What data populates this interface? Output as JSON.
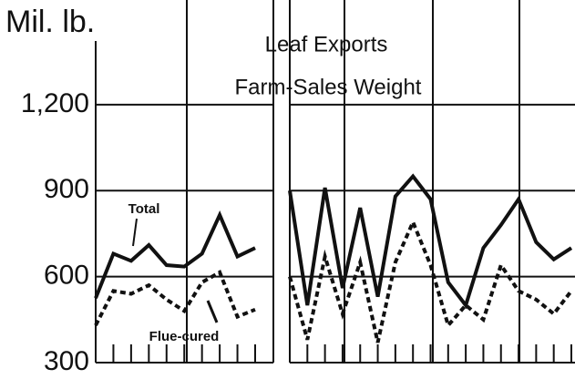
{
  "chart_data": [
    {
      "type": "line",
      "y_label": "Mil. lb.",
      "categories": [
        null,
        null,
        null,
        null,
        null,
        null,
        null,
        null,
        null,
        null
      ],
      "series": [
        {
          "name": "Total",
          "color": "#111111",
          "values": [
            525,
            680,
            655,
            710,
            640,
            635,
            680,
            815,
            670,
            700
          ]
        },
        {
          "name": "Flue-cured",
          "color": "#111111",
          "dashed": true,
          "values": [
            430,
            550,
            540,
            570,
            520,
            480,
            580,
            615,
            460,
            485
          ]
        }
      ],
      "ylim": [
        300,
        1530
      ],
      "yticks": [
        300,
        600,
        900,
        {
          "value": 1200,
          "label": "1,200"
        }
      ],
      "grid": true
    },
    {
      "type": "line",
      "title": "Leaf Exports",
      "subtitle": "Farm-Sales Weight",
      "categories": [
        null,
        null,
        null,
        null,
        null,
        null,
        null,
        null,
        null,
        null,
        null,
        null,
        null,
        null,
        null,
        null,
        null
      ],
      "series": [
        {
          "color": "#111111",
          "values": [
            900,
            500,
            910,
            560,
            840,
            530,
            880,
            950,
            870,
            580,
            500,
            700,
            780,
            870,
            720,
            660,
            700
          ]
        },
        {
          "color": "#111111",
          "dashed": true,
          "values": [
            600,
            380,
            670,
            470,
            650,
            370,
            650,
            790,
            640,
            430,
            500,
            450,
            640,
            550,
            520,
            470,
            550
          ]
        }
      ],
      "ylim": [
        300,
        1530
      ],
      "yticks": [
        300,
        600,
        900,
        1200
      ],
      "grid": true
    }
  ]
}
